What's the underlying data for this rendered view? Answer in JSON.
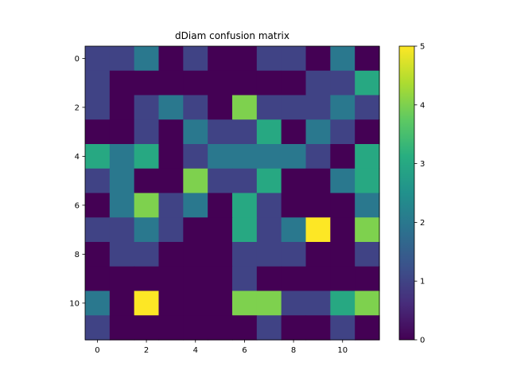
{
  "chart_data": {
    "type": "heatmap",
    "title": "dDiam confusion matrix",
    "xlabel": "",
    "ylabel": "",
    "colormap": "viridis",
    "vmin": 0,
    "vmax": 5,
    "x_ticks": [
      "0",
      "2",
      "4",
      "6",
      "8",
      "10"
    ],
    "y_ticks": [
      "0",
      "2",
      "4",
      "6",
      "8",
      "10"
    ],
    "colorbar_ticks": [
      "0",
      "1",
      "2",
      "3",
      "4",
      "5"
    ],
    "matrix": [
      [
        1,
        1,
        2,
        0,
        1,
        0,
        0,
        1,
        1,
        0,
        2,
        0
      ],
      [
        1,
        0,
        0,
        0,
        0,
        0,
        0,
        0,
        0,
        1,
        1,
        3
      ],
      [
        1,
        0,
        1,
        2,
        1,
        0,
        4,
        1,
        1,
        1,
        2,
        1
      ],
      [
        0,
        0,
        1,
        0,
        2,
        1,
        1,
        3,
        0,
        2,
        1,
        0
      ],
      [
        3,
        2,
        3,
        0,
        1,
        2,
        2,
        2,
        2,
        1,
        0,
        3
      ],
      [
        1,
        2,
        0,
        0,
        4,
        1,
        1,
        3,
        0,
        0,
        2,
        3
      ],
      [
        0,
        2,
        4,
        1,
        2,
        0,
        3,
        1,
        0,
        0,
        0,
        2
      ],
      [
        1,
        1,
        2,
        1,
        0,
        0,
        3,
        1,
        2,
        5,
        0,
        4
      ],
      [
        0,
        1,
        1,
        0,
        0,
        0,
        1,
        1,
        1,
        0,
        0,
        1
      ],
      [
        0,
        0,
        0,
        0,
        0,
        0,
        1,
        0,
        0,
        0,
        0,
        0
      ],
      [
        2,
        0,
        5,
        0,
        0,
        0,
        4,
        4,
        1,
        1,
        3,
        4
      ],
      [
        1,
        0,
        0,
        0,
        0,
        0,
        0,
        1,
        0,
        0,
        1,
        0
      ]
    ]
  }
}
